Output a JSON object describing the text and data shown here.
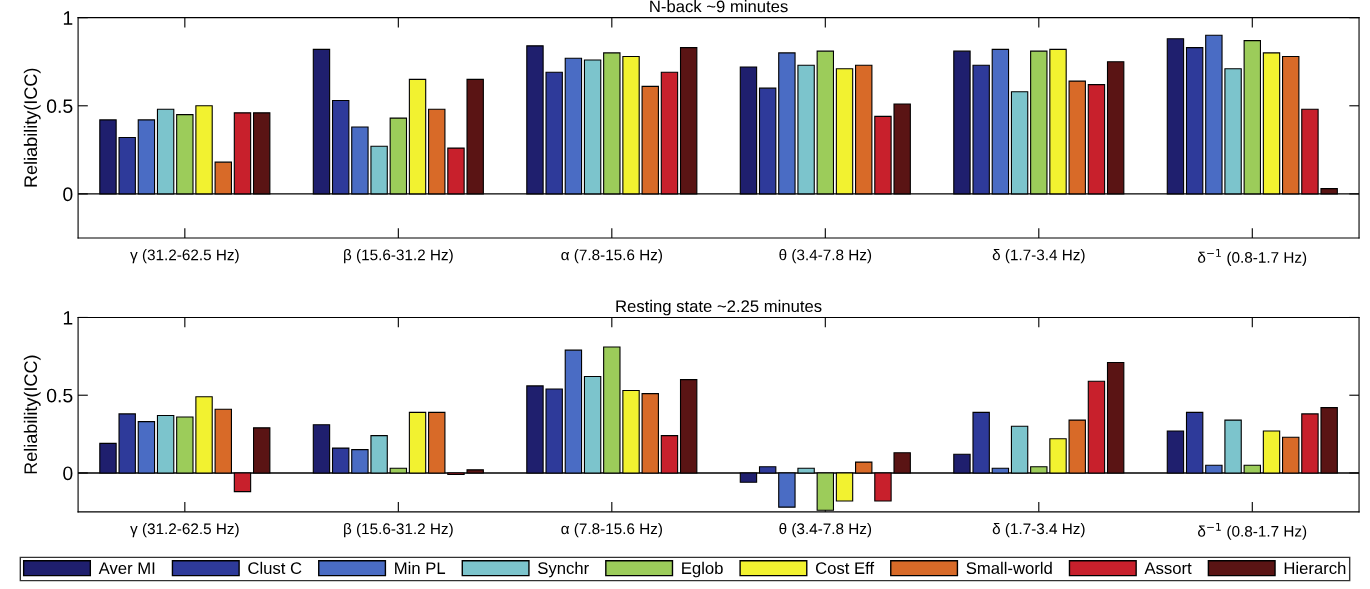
{
  "chart_data": [
    {
      "type": "bar",
      "title": "N-back ~9 minutes",
      "ylabel": "Reliability(ICC)",
      "categories": [
        "γ (31.2-62.5 Hz)",
        "β (15.6-31.2 Hz)",
        "α (7.8-15.6 Hz)",
        "θ (3.4-7.8 Hz)",
        "δ (1.7-3.4 Hz)",
        "δ$^{−1}$ (0.8-1.7 Hz)"
      ],
      "ylim": [
        -0.25,
        1
      ],
      "yticks": [
        0,
        0.5,
        1
      ],
      "series": [
        {
          "color": "#1f1f6e",
          "values": [
            0.42,
            0.82,
            0.84,
            0.72,
            0.81,
            0.88
          ]
        },
        {
          "color": "#2e3a9a",
          "values": [
            0.32,
            0.53,
            0.69,
            0.6,
            0.73,
            0.83
          ]
        },
        {
          "color": "#4a6cc4",
          "values": [
            0.42,
            0.38,
            0.77,
            0.8,
            0.82,
            0.9
          ]
        },
        {
          "color": "#7cc4cc",
          "values": [
            0.48,
            0.27,
            0.76,
            0.73,
            0.58,
            0.71
          ]
        },
        {
          "color": "#9ccc5a",
          "values": [
            0.45,
            0.43,
            0.8,
            0.81,
            0.81,
            0.87
          ]
        },
        {
          "color": "#f2f230",
          "values": [
            0.5,
            0.65,
            0.78,
            0.71,
            0.82,
            0.8
          ]
        },
        {
          "color": "#d86a28",
          "values": [
            0.18,
            0.48,
            0.61,
            0.73,
            0.64,
            0.78
          ]
        },
        {
          "color": "#c8202c",
          "values": [
            0.46,
            0.26,
            0.69,
            0.44,
            0.62,
            0.48
          ]
        },
        {
          "color": "#5a1414",
          "values": [
            0.46,
            0.65,
            0.83,
            0.51,
            0.75,
            0.03
          ]
        }
      ]
    },
    {
      "type": "bar",
      "title": "Resting state ~2.25 minutes",
      "ylabel": "Reliability(ICC)",
      "categories": [
        "γ (31.2-62.5 Hz)",
        "β (15.6-31.2 Hz)",
        "α (7.8-15.6 Hz)",
        "θ (3.4-7.8 Hz)",
        "δ (1.7-3.4 Hz)",
        "δ$^{−1}$ (0.8-1.7 Hz)"
      ],
      "ylim": [
        -0.25,
        1
      ],
      "yticks": [
        0,
        0.5,
        1
      ],
      "legend": "bottom",
      "series": [
        {
          "name": "Aver MI",
          "color": "#1f1f6e",
          "values": [
            0.19,
            0.31,
            0.56,
            -0.06,
            0.12,
            0.27
          ]
        },
        {
          "name": "Clust C",
          "color": "#2e3a9a",
          "values": [
            0.38,
            0.16,
            0.54,
            0.04,
            0.39,
            0.39
          ]
        },
        {
          "name": "Min PL",
          "color": "#4a6cc4",
          "values": [
            0.33,
            0.15,
            0.79,
            -0.22,
            0.03,
            0.05
          ]
        },
        {
          "name": "Synchr",
          "color": "#7cc4cc",
          "values": [
            0.37,
            0.24,
            0.62,
            0.03,
            0.3,
            0.34
          ]
        },
        {
          "name": "Eglob",
          "color": "#9ccc5a",
          "values": [
            0.36,
            0.03,
            0.81,
            -0.24,
            0.04,
            0.05
          ]
        },
        {
          "name": "Cost Eff",
          "color": "#f2f230",
          "values": [
            0.49,
            0.39,
            0.53,
            -0.18,
            0.22,
            0.27
          ]
        },
        {
          "name": "Small-world",
          "color": "#d86a28",
          "values": [
            0.41,
            0.39,
            0.51,
            0.07,
            0.34,
            0.23
          ]
        },
        {
          "name": "Assort",
          "color": "#c8202c",
          "values": [
            -0.12,
            -0.01,
            0.24,
            -0.18,
            0.59,
            0.38
          ]
        },
        {
          "name": "Hierarch",
          "color": "#5a1414",
          "values": [
            0.29,
            0.02,
            0.6,
            0.13,
            0.71,
            0.42
          ]
        }
      ]
    }
  ]
}
